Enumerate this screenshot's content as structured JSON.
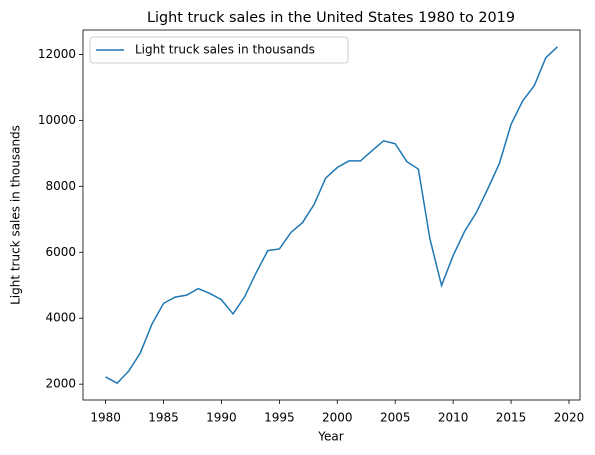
{
  "chart_data": {
    "type": "line",
    "title": "Light truck sales in the United States 1980 to 2019",
    "xlabel": "Year",
    "ylabel": "Light truck sales in thousands",
    "x": [
      1980,
      1981,
      1982,
      1983,
      1984,
      1985,
      1986,
      1987,
      1988,
      1989,
      1990,
      1991,
      1992,
      1993,
      1994,
      1995,
      1996,
      1997,
      1998,
      1999,
      2000,
      2001,
      2002,
      2003,
      2004,
      2005,
      2006,
      2007,
      2008,
      2009,
      2010,
      2011,
      2012,
      2013,
      2014,
      2015,
      2016,
      2017,
      2018,
      2019
    ],
    "series": [
      {
        "name": "Light truck sales in thousands",
        "color": "#1f77b4",
        "values": [
          2220,
          2030,
          2400,
          2950,
          3820,
          4450,
          4640,
          4700,
          4900,
          4750,
          4560,
          4130,
          4650,
          5380,
          6050,
          6100,
          6600,
          6900,
          7450,
          8250,
          8570,
          8770,
          8770,
          9080,
          9380,
          9290,
          8750,
          8520,
          6400,
          4990,
          5900,
          6640,
          7200,
          7930,
          8700,
          9880,
          10590,
          11050,
          11900,
          12230
        ]
      }
    ],
    "xlim": [
      1978.05,
      2020.95
    ],
    "xticks": [
      1980,
      1985,
      1990,
      1995,
      2000,
      2005,
      2010,
      2015,
      2020
    ],
    "ylim": [
      1520,
      12740
    ],
    "yticks": [
      2000,
      4000,
      6000,
      8000,
      10000,
      12000
    ],
    "legend": "upper left"
  }
}
